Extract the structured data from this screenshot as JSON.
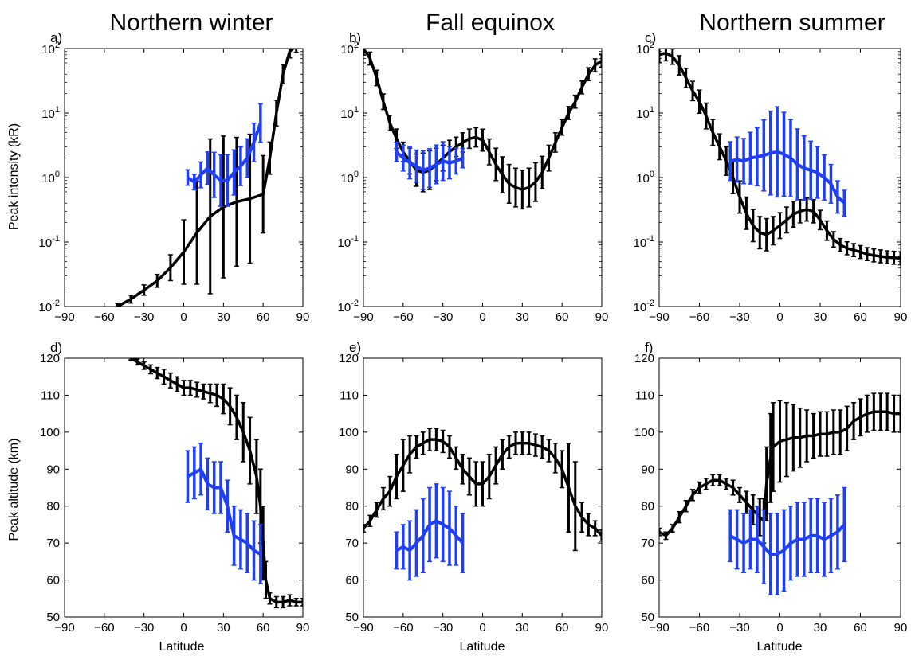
{
  "titles": [
    "Northern winter",
    "Fall equinox",
    "Northern summer"
  ],
  "labels": {
    "ylabel_top": "Peak intensity (kR)",
    "ylabel_bottom": "Peak altitude (km)",
    "xlabel": "Latitude"
  },
  "colors": {
    "model": "#000000",
    "obs": "#1f3ff5"
  },
  "x_ticks": [
    "−90",
    "−60",
    "−30",
    "0",
    "30",
    "60",
    "90"
  ],
  "log_ticks": [
    {
      "base": "10",
      "exp": "2"
    },
    {
      "base": "10",
      "exp": "1"
    },
    {
      "base": "10",
      "exp": "0"
    },
    {
      "base": "10",
      "exp": "-1"
    },
    {
      "base": "10",
      "exp": "-2"
    }
  ],
  "alt_ticks": [
    "120",
    "110",
    "100",
    "90",
    "80",
    "70",
    "60",
    "50"
  ],
  "chart_data": [
    {
      "panel": "a)",
      "type": "line",
      "yscale": "log",
      "xlim": [
        -90,
        90
      ],
      "ylim": [
        0.01,
        100
      ],
      "series": [
        {
          "color": "black",
          "x": [
            -50,
            -40,
            -30,
            -20,
            -10,
            0,
            10,
            20,
            30,
            40,
            50,
            60,
            65,
            70,
            75,
            80,
            85
          ],
          "y": [
            0.01,
            0.013,
            0.018,
            0.025,
            0.04,
            0.07,
            0.14,
            0.25,
            0.35,
            0.42,
            0.47,
            0.55,
            2,
            10,
            40,
            90,
            110
          ],
          "err": [
            0.05,
            0.06,
            0.08,
            0.1,
            0.2,
            0.5,
            0.8,
            1.2,
            1.1,
            1.0,
            1.0,
            0.6,
            0.25,
            0.2,
            0.15,
            0.1,
            0.1
          ]
        },
        {
          "color": "blue",
          "x": [
            3,
            8,
            13,
            18,
            23,
            28,
            33,
            38,
            43,
            48,
            53,
            58
          ],
          "y": [
            1.0,
            0.85,
            1.1,
            1.4,
            1.1,
            0.9,
            0.9,
            1.2,
            1.5,
            2.0,
            3.5,
            7
          ],
          "err": [
            0.12,
            0.12,
            0.2,
            0.25,
            0.35,
            0.4,
            0.4,
            0.35,
            0.3,
            0.3,
            0.3,
            0.3
          ]
        }
      ]
    },
    {
      "panel": "b)",
      "type": "line",
      "yscale": "log",
      "xlim": [
        -90,
        90
      ],
      "ylim": [
        0.01,
        100
      ],
      "series": [
        {
          "color": "black",
          "x": [
            -90,
            -85,
            -80,
            -75,
            -70,
            -65,
            -60,
            -55,
            -50,
            -45,
            -40,
            -35,
            -30,
            -25,
            -20,
            -15,
            -10,
            -5,
            0,
            5,
            10,
            15,
            20,
            25,
            30,
            35,
            40,
            45,
            50,
            55,
            60,
            65,
            70,
            75,
            80,
            85,
            90
          ],
          "y": [
            100,
            70,
            35,
            15,
            7,
            4,
            2.5,
            1.8,
            1.3,
            1.2,
            1.3,
            1.6,
            2.0,
            2.5,
            3.0,
            3.5,
            4.0,
            4.2,
            3.8,
            2.5,
            1.6,
            1.1,
            0.8,
            0.7,
            0.65,
            0.7,
            0.85,
            1.2,
            2.0,
            3.5,
            6,
            10,
            15,
            25,
            40,
            55,
            65
          ],
          "err": [
            0.1,
            0.1,
            0.12,
            0.12,
            0.12,
            0.15,
            0.15,
            0.2,
            0.25,
            0.3,
            0.3,
            0.25,
            0.2,
            0.18,
            0.15,
            0.15,
            0.15,
            0.15,
            0.17,
            0.2,
            0.25,
            0.28,
            0.3,
            0.3,
            0.3,
            0.3,
            0.3,
            0.25,
            0.2,
            0.15,
            0.12,
            0.1,
            0.1,
            0.1,
            0.1,
            0.1,
            0.1
          ]
        },
        {
          "color": "blue",
          "x": [
            -65,
            -60,
            -55,
            -50,
            -45,
            -40,
            -35,
            -30,
            -25,
            -20,
            -15
          ],
          "y": [
            2.5,
            2.0,
            1.7,
            1.5,
            1.3,
            1.4,
            1.6,
            1.8,
            1.7,
            1.8,
            2.0
          ],
          "err": [
            0.15,
            0.2,
            0.25,
            0.25,
            0.3,
            0.3,
            0.3,
            0.3,
            0.25,
            0.2,
            0.15
          ]
        }
      ]
    },
    {
      "panel": "c)",
      "type": "line",
      "yscale": "log",
      "xlim": [
        -90,
        90
      ],
      "ylim": [
        0.01,
        100
      ],
      "series": [
        {
          "color": "black",
          "x": [
            -90,
            -85,
            -80,
            -75,
            -70,
            -65,
            -60,
            -55,
            -50,
            -45,
            -40,
            -35,
            -30,
            -25,
            -20,
            -15,
            -10,
            -5,
            0,
            5,
            10,
            15,
            20,
            25,
            30,
            35,
            40,
            45,
            50,
            55,
            60,
            65,
            70,
            75,
            80,
            85,
            90
          ],
          "y": [
            80,
            85,
            75,
            55,
            35,
            22,
            15,
            9,
            5,
            3,
            1.8,
            1.0,
            0.5,
            0.28,
            0.18,
            0.14,
            0.13,
            0.15,
            0.18,
            0.22,
            0.27,
            0.3,
            0.32,
            0.3,
            0.22,
            0.15,
            0.11,
            0.09,
            0.08,
            0.075,
            0.07,
            0.065,
            0.062,
            0.06,
            0.058,
            0.057,
            0.056
          ],
          "err": [
            0.12,
            0.12,
            0.12,
            0.15,
            0.15,
            0.15,
            0.18,
            0.2,
            0.2,
            0.2,
            0.22,
            0.25,
            0.25,
            0.25,
            0.25,
            0.25,
            0.25,
            0.22,
            0.2,
            0.2,
            0.2,
            0.18,
            0.18,
            0.18,
            0.15,
            0.15,
            0.12,
            0.1,
            0.1,
            0.1,
            0.1,
            0.1,
            0.1,
            0.1,
            0.1,
            0.1,
            0.1
          ]
        },
        {
          "color": "blue",
          "x": [
            -37,
            -32,
            -27,
            -22,
            -17,
            -12,
            -7,
            -2,
            3,
            8,
            13,
            18,
            23,
            28,
            33,
            38,
            43,
            48
          ],
          "y": [
            1.8,
            1.9,
            1.8,
            2.0,
            2.1,
            2.2,
            2.4,
            2.5,
            2.3,
            2.0,
            1.6,
            1.4,
            1.3,
            1.2,
            1.0,
            0.8,
            0.5,
            0.4
          ],
          "err": [
            0.3,
            0.35,
            0.35,
            0.4,
            0.45,
            0.55,
            0.65,
            0.7,
            0.65,
            0.6,
            0.55,
            0.5,
            0.45,
            0.4,
            0.35,
            0.3,
            0.25,
            0.2
          ]
        }
      ]
    },
    {
      "panel": "d)",
      "type": "line",
      "yscale": "linear",
      "xlim": [
        -90,
        90
      ],
      "ylim": [
        50,
        120
      ],
      "series": [
        {
          "color": "black",
          "x": [
            -40,
            -35,
            -30,
            -25,
            -20,
            -15,
            -10,
            -5,
            0,
            5,
            10,
            15,
            20,
            25,
            30,
            35,
            40,
            45,
            50,
            55,
            58,
            60,
            62,
            65,
            70,
            75,
            80,
            85,
            90
          ],
          "y": [
            120,
            119,
            118,
            117,
            116,
            115,
            114,
            113,
            112,
            112,
            111.5,
            111,
            110.5,
            110,
            109,
            107,
            104,
            100,
            95,
            88,
            80,
            70,
            60,
            55,
            54,
            54,
            54.5,
            54,
            54
          ],
          "err": [
            0.5,
            0.8,
            1,
            1.2,
            1.5,
            2,
            2,
            2,
            2,
            2,
            2,
            2,
            2.5,
            3,
            4,
            5,
            6,
            8,
            9,
            10,
            10,
            10,
            5,
            1.5,
            1.5,
            1.5,
            1.5,
            1,
            1
          ]
        },
        {
          "color": "blue",
          "x": [
            3,
            8,
            13,
            18,
            23,
            28,
            33,
            38,
            43,
            48,
            53,
            58
          ],
          "y": [
            88,
            89,
            90,
            86,
            85,
            85,
            80,
            72,
            71,
            70,
            68,
            67
          ],
          "err": [
            7,
            7,
            7,
            7,
            7,
            7,
            7,
            8,
            8,
            8,
            8,
            8
          ]
        }
      ]
    },
    {
      "panel": "e)",
      "type": "line",
      "yscale": "linear",
      "xlim": [
        -90,
        90
      ],
      "ylim": [
        50,
        120
      ],
      "series": [
        {
          "color": "black",
          "x": [
            -90,
            -85,
            -80,
            -75,
            -70,
            -65,
            -60,
            -55,
            -50,
            -45,
            -40,
            -35,
            -30,
            -25,
            -20,
            -15,
            -10,
            -5,
            0,
            5,
            10,
            15,
            20,
            25,
            30,
            35,
            40,
            45,
            50,
            55,
            60,
            65,
            70,
            75,
            80,
            85,
            90
          ],
          "y": [
            74,
            76,
            79,
            82,
            84,
            88,
            91,
            94,
            96,
            97,
            98,
            98,
            97.5,
            96,
            93,
            90,
            88,
            86,
            86,
            88,
            91,
            94,
            96,
            97,
            97,
            97,
            96.5,
            96,
            95,
            93,
            90,
            85,
            80,
            77,
            75,
            74,
            72
          ],
          "err": [
            1,
            1.5,
            2,
            3,
            4,
            6,
            7,
            5,
            3,
            3,
            3,
            3,
            3,
            3,
            3,
            4,
            5,
            6,
            6,
            6,
            5,
            4,
            3,
            3,
            3,
            3,
            3,
            3,
            3,
            4,
            5,
            12,
            12,
            4,
            3,
            2,
            1.5
          ]
        },
        {
          "color": "blue",
          "x": [
            -65,
            -60,
            -55,
            -50,
            -45,
            -40,
            -35,
            -30,
            -25,
            -20,
            -15
          ],
          "y": [
            68,
            69,
            68,
            70,
            72,
            75,
            76,
            75,
            74,
            72,
            70
          ],
          "err": [
            5,
            6,
            8,
            9,
            10,
            10,
            10,
            10,
            10,
            8,
            8
          ]
        }
      ]
    },
    {
      "panel": "f)",
      "type": "line",
      "yscale": "linear",
      "xlim": [
        -90,
        90
      ],
      "ylim": [
        50,
        120
      ],
      "series": [
        {
          "color": "black",
          "x": [
            -90,
            -85,
            -80,
            -75,
            -70,
            -65,
            -60,
            -55,
            -50,
            -45,
            -40,
            -35,
            -30,
            -25,
            -20,
            -15,
            -12,
            -10,
            -7,
            -5,
            0,
            5,
            10,
            15,
            20,
            25,
            30,
            35,
            40,
            45,
            50,
            55,
            60,
            65,
            70,
            75,
            80,
            85,
            90
          ],
          "y": [
            73,
            72,
            74,
            77,
            80,
            83,
            85,
            86,
            87,
            87,
            86,
            85,
            83,
            81,
            79,
            77,
            76,
            86,
            93,
            96,
            97.5,
            98,
            98.5,
            98.5,
            99,
            99,
            99.5,
            99.5,
            100,
            100,
            101,
            103,
            104,
            105,
            105.5,
            105.5,
            105.5,
            105,
            105
          ],
          "err": [
            1,
            1,
            1,
            1.5,
            1.5,
            1.5,
            1.5,
            1.5,
            1.5,
            1.5,
            1.5,
            2,
            2,
            3,
            4,
            5,
            6,
            10,
            12,
            12,
            11,
            10,
            9,
            8,
            7,
            6,
            6,
            6,
            6,
            6,
            6,
            5,
            5,
            5,
            5,
            5,
            5,
            5,
            5
          ]
        },
        {
          "color": "blue",
          "x": [
            -37,
            -32,
            -27,
            -22,
            -17,
            -12,
            -7,
            -2,
            3,
            8,
            13,
            18,
            23,
            28,
            33,
            38,
            43,
            48
          ],
          "y": [
            72,
            71,
            70,
            71,
            71,
            69,
            67,
            67,
            68,
            70,
            71,
            71,
            72,
            72,
            71,
            72,
            73,
            75
          ],
          "err": [
            7,
            8,
            8,
            8,
            9,
            10,
            11,
            11,
            11,
            10,
            10,
            10,
            10,
            10,
            10,
            10,
            10,
            10
          ]
        }
      ]
    }
  ]
}
